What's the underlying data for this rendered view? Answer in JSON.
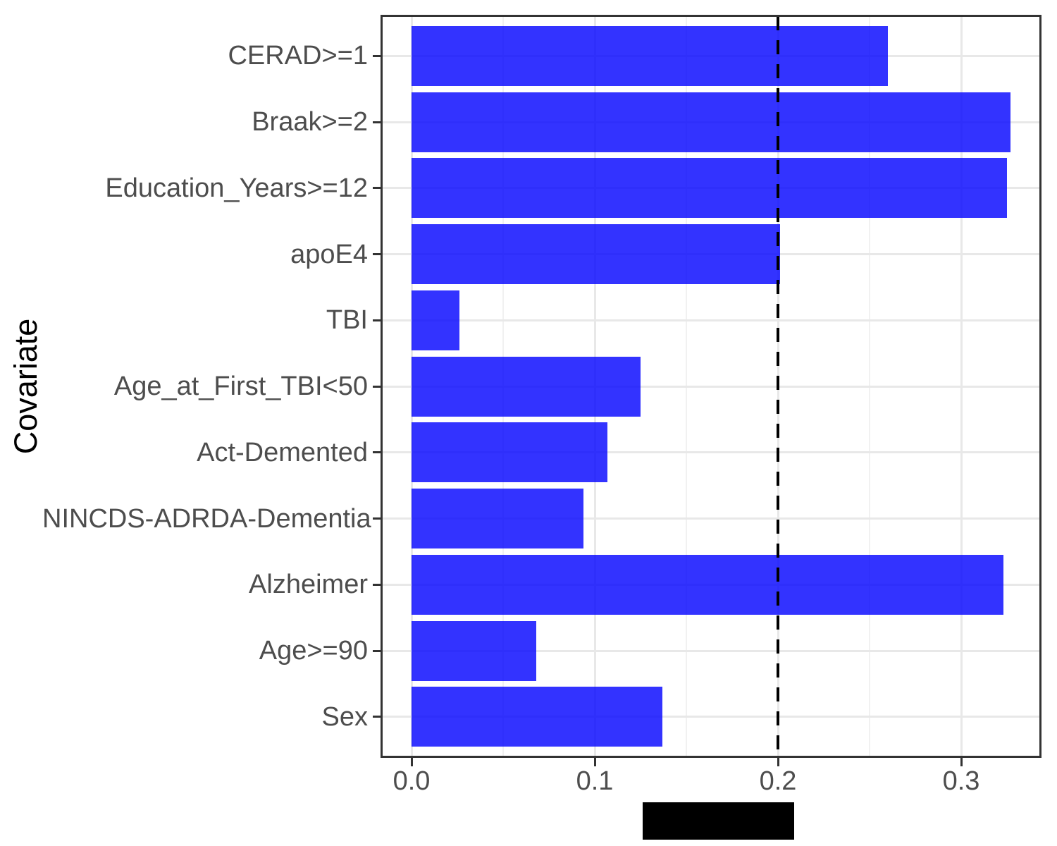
{
  "chart_data": {
    "type": "bar",
    "orientation": "horizontal",
    "title": "",
    "ylabel": "Covariate",
    "xlabel": "",
    "x_axis_title_redacted_black_box": true,
    "categories": [
      "CERAD>=1",
      "Braak>=2",
      "Education_Years>=12",
      "apoE4",
      "TBI",
      "Age_at_First_TBI<50",
      "Act-Demented",
      "NINCDS-ADRDA-Dementia",
      "Alzheimer",
      "Age>=90",
      "Sex"
    ],
    "values": [
      0.26,
      0.327,
      0.325,
      0.201,
      0.026,
      0.125,
      0.107,
      0.094,
      0.323,
      0.068,
      0.137
    ],
    "x_tick_labels": [
      "0.0",
      "0.1",
      "0.2",
      "0.3"
    ],
    "x_tick_values": [
      0.0,
      0.1,
      0.2,
      0.3
    ],
    "x_minor_tick_values": [
      0.05,
      0.15,
      0.25
    ],
    "xlim": [
      -0.016,
      0.343
    ],
    "reference_line": {
      "x": 0.2,
      "style": "dashed",
      "color": "#000000"
    },
    "bar_fill_base": "#0000FF",
    "bar_alpha": 0.8,
    "bar_effective_color": "#3333FF",
    "grid_color": "#E8E8E8",
    "axis_text_color": "#4D4D4D",
    "panel_border_color": "#333333",
    "legend": "none",
    "grid": "on"
  }
}
